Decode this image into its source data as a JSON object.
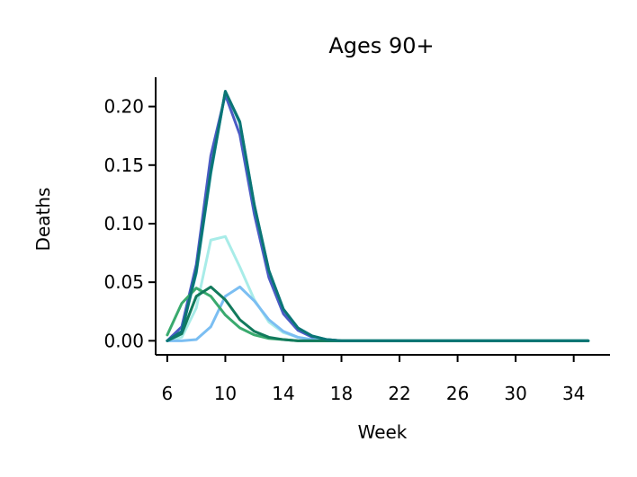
{
  "chart_data": {
    "type": "line",
    "title": "Ages 90+",
    "xlabel": "Week",
    "ylabel": "Deaths",
    "xlim": [
      5.2,
      36.5
    ],
    "ylim": [
      -0.012,
      0.225
    ],
    "xticks": [
      6,
      10,
      14,
      18,
      22,
      26,
      30,
      34
    ],
    "yticks": [
      0.0,
      0.05,
      0.1,
      0.15,
      0.2
    ],
    "ytick_labels": [
      "0.00",
      "0.05",
      "0.10",
      "0.15",
      "0.20"
    ],
    "grid": false,
    "legend": "none",
    "x": [
      6,
      7,
      8,
      9,
      10,
      11,
      12,
      13,
      14,
      15,
      16,
      17,
      18,
      19,
      20,
      21,
      22,
      23,
      24,
      25,
      26,
      27,
      28,
      29,
      30,
      31,
      32,
      33,
      34,
      35
    ],
    "series": [
      {
        "color": "#4a5bc4",
        "values": [
          0.0,
          0.012,
          0.065,
          0.158,
          0.21,
          0.176,
          0.108,
          0.054,
          0.023,
          0.009,
          0.003,
          0.001,
          0,
          0,
          0,
          0,
          0,
          0,
          0,
          0,
          0,
          0,
          0,
          0,
          0,
          0,
          0,
          0,
          0,
          0
        ]
      },
      {
        "color": "#1e9aa0",
        "values": [
          0.0,
          0.008,
          0.058,
          0.143,
          0.213,
          0.186,
          0.115,
          0.06,
          0.027,
          0.011,
          0.004,
          0.001,
          0,
          0,
          0,
          0,
          0,
          0,
          0,
          0,
          0,
          0,
          0,
          0,
          0,
          0,
          0,
          0,
          0,
          0
        ]
      },
      {
        "color": "#a8ece8",
        "values": [
          0.0,
          0.003,
          0.028,
          0.086,
          0.089,
          0.063,
          0.035,
          0.016,
          0.007,
          0.003,
          0.001,
          0,
          0,
          0,
          0,
          0,
          0,
          0,
          0,
          0,
          0,
          0,
          0,
          0,
          0,
          0,
          0,
          0,
          0,
          0
        ]
      },
      {
        "color": "#7bbef2",
        "values": [
          0.0,
          0.0,
          0.001,
          0.012,
          0.038,
          0.046,
          0.034,
          0.018,
          0.008,
          0.003,
          0.001,
          0,
          0,
          0,
          0,
          0,
          0,
          0,
          0,
          0,
          0,
          0,
          0,
          0,
          0,
          0,
          0,
          0,
          0,
          0
        ]
      },
      {
        "color": "#3aaa6e",
        "values": [
          0.005,
          0.032,
          0.045,
          0.038,
          0.022,
          0.011,
          0.005,
          0.002,
          0.001,
          0,
          0,
          0,
          0,
          0,
          0,
          0,
          0,
          0,
          0,
          0,
          0,
          0,
          0,
          0,
          0,
          0,
          0,
          0,
          0,
          0
        ]
      },
      {
        "color": "#127a5c",
        "values": [
          0.0,
          0.006,
          0.038,
          0.046,
          0.035,
          0.018,
          0.008,
          0.003,
          0.001,
          0,
          0,
          0,
          0,
          0,
          0,
          0,
          0,
          0,
          0,
          0,
          0,
          0,
          0,
          0,
          0,
          0,
          0,
          0,
          0,
          0
        ]
      },
      {
        "color": "#0b7575",
        "values": [
          0.0,
          0.008,
          0.06,
          0.145,
          0.213,
          0.187,
          0.116,
          0.06,
          0.027,
          0.011,
          0.004,
          0.001,
          0,
          0,
          0,
          0,
          0,
          0,
          0,
          0,
          0,
          0,
          0,
          0,
          0,
          0,
          0,
          0,
          0,
          0
        ]
      }
    ]
  }
}
